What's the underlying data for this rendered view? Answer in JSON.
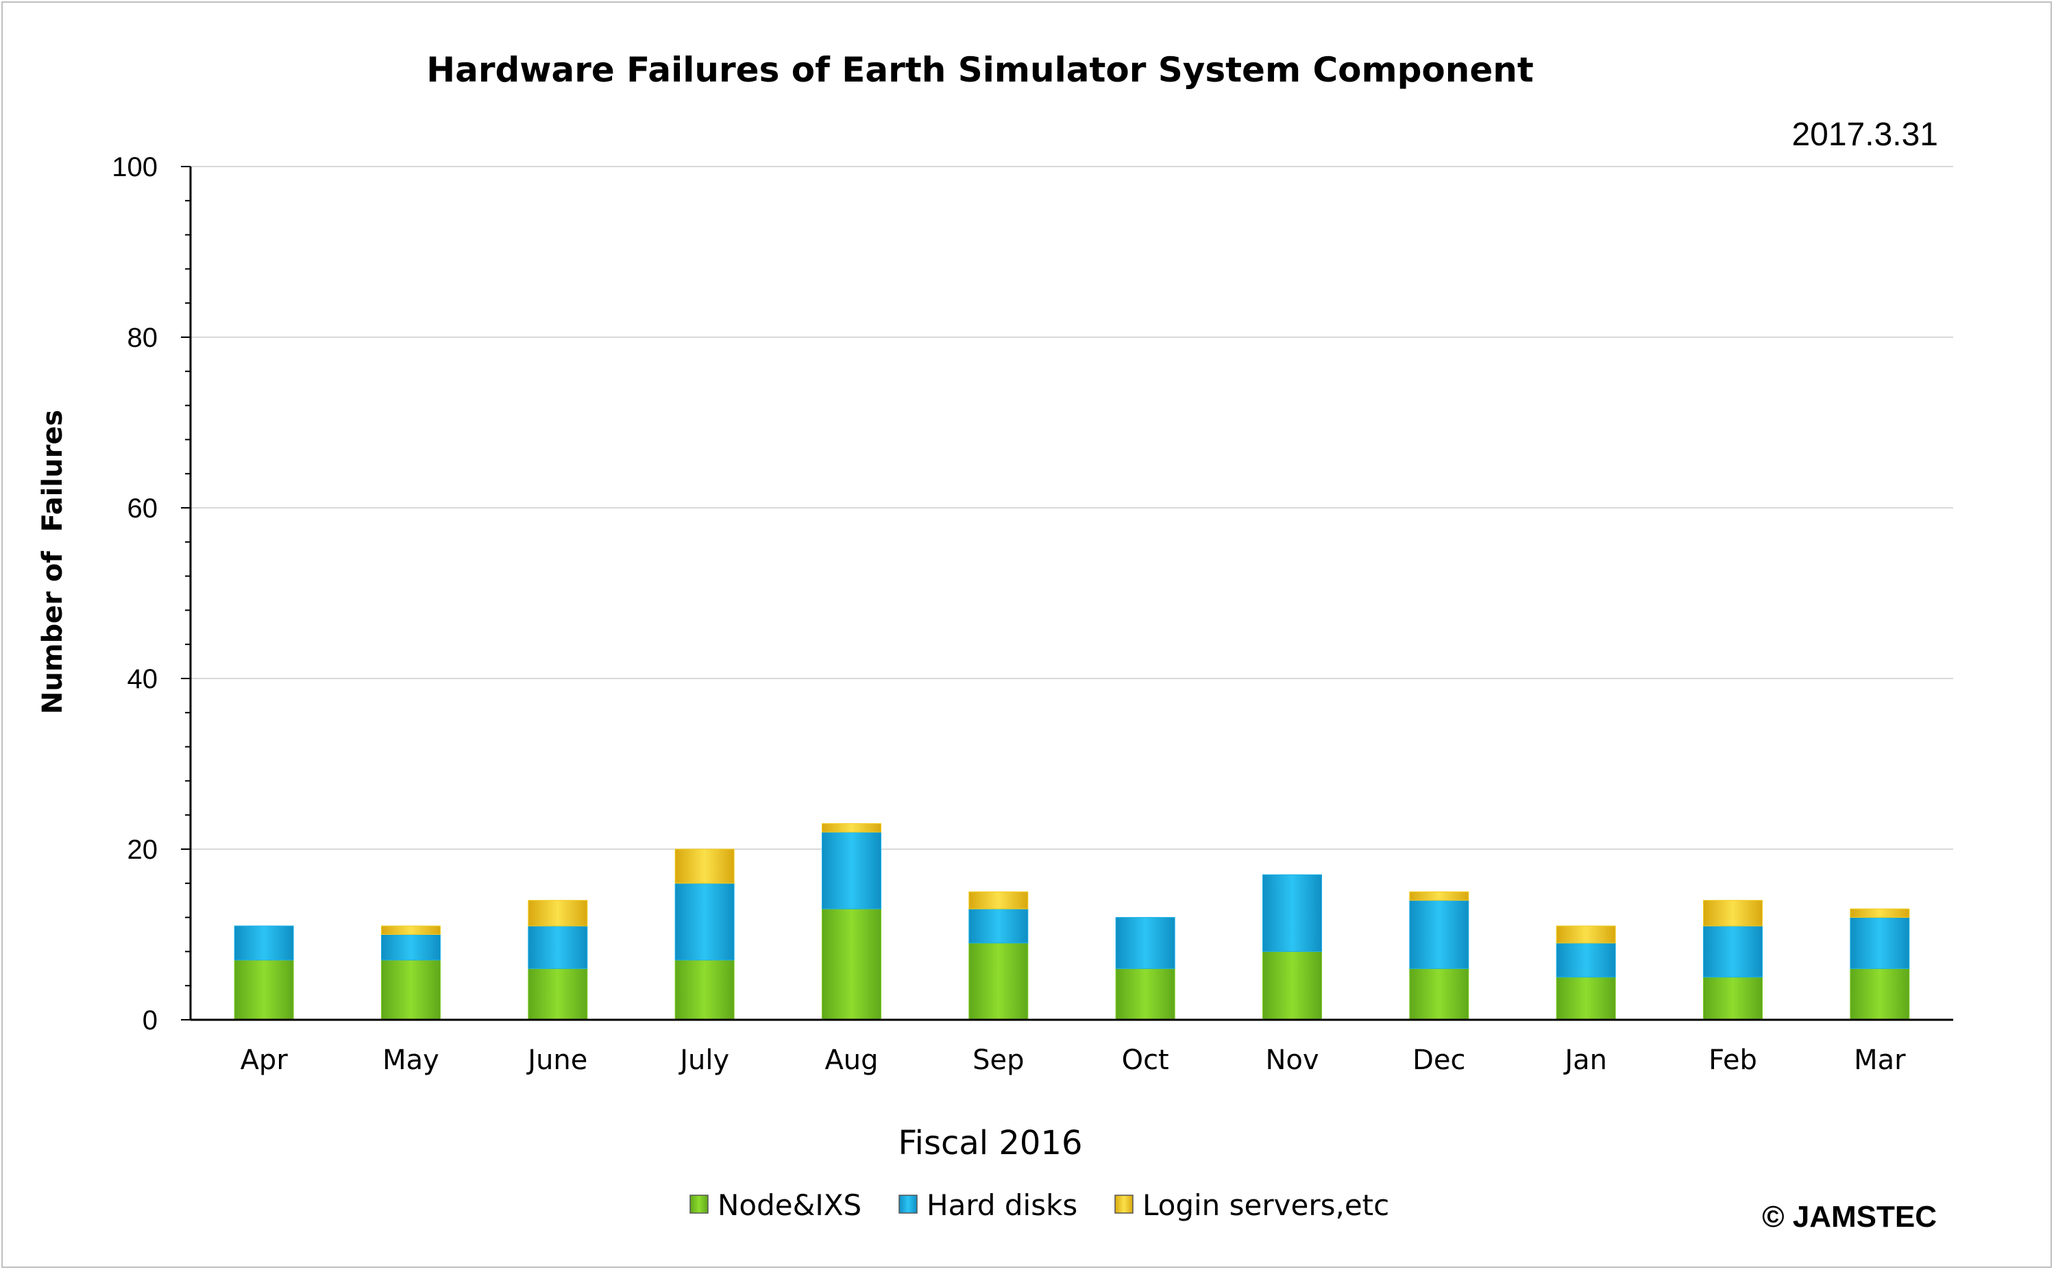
{
  "chart_data": {
    "type": "bar",
    "stacked": true,
    "title": "Hardware Failures of Earth Simulator System Component",
    "subtitle": "2017.3.31",
    "xlabel": "Fiscal 2016",
    "ylabel": "Number of  Failures",
    "ylim": [
      0,
      100
    ],
    "yticks": [
      "0",
      "20",
      "40",
      "60",
      "80",
      "100"
    ],
    "grid": true,
    "legend_position": "bottom",
    "categories": [
      "Apr",
      "May",
      "June",
      "July",
      "Aug",
      "Sep",
      "Oct",
      "Nov",
      "Dec",
      "Jan",
      "Feb",
      "Mar"
    ],
    "series": [
      {
        "name": "Node&IXS",
        "color": "#7ccc22",
        "values": [
          7,
          7,
          6,
          7,
          13,
          9,
          6,
          8,
          6,
          5,
          5,
          6
        ]
      },
      {
        "name": "Hard disks",
        "color": "#1cb0e6",
        "values": [
          4,
          3,
          5,
          9,
          9,
          4,
          6,
          9,
          8,
          4,
          6,
          6
        ]
      },
      {
        "name": "Login servers,etc",
        "color": "#f2cc1e",
        "values": [
          0,
          1,
          3,
          4,
          1,
          2,
          0,
          0,
          1,
          2,
          3,
          1
        ]
      }
    ],
    "copyright": "© JAMSTEC"
  }
}
